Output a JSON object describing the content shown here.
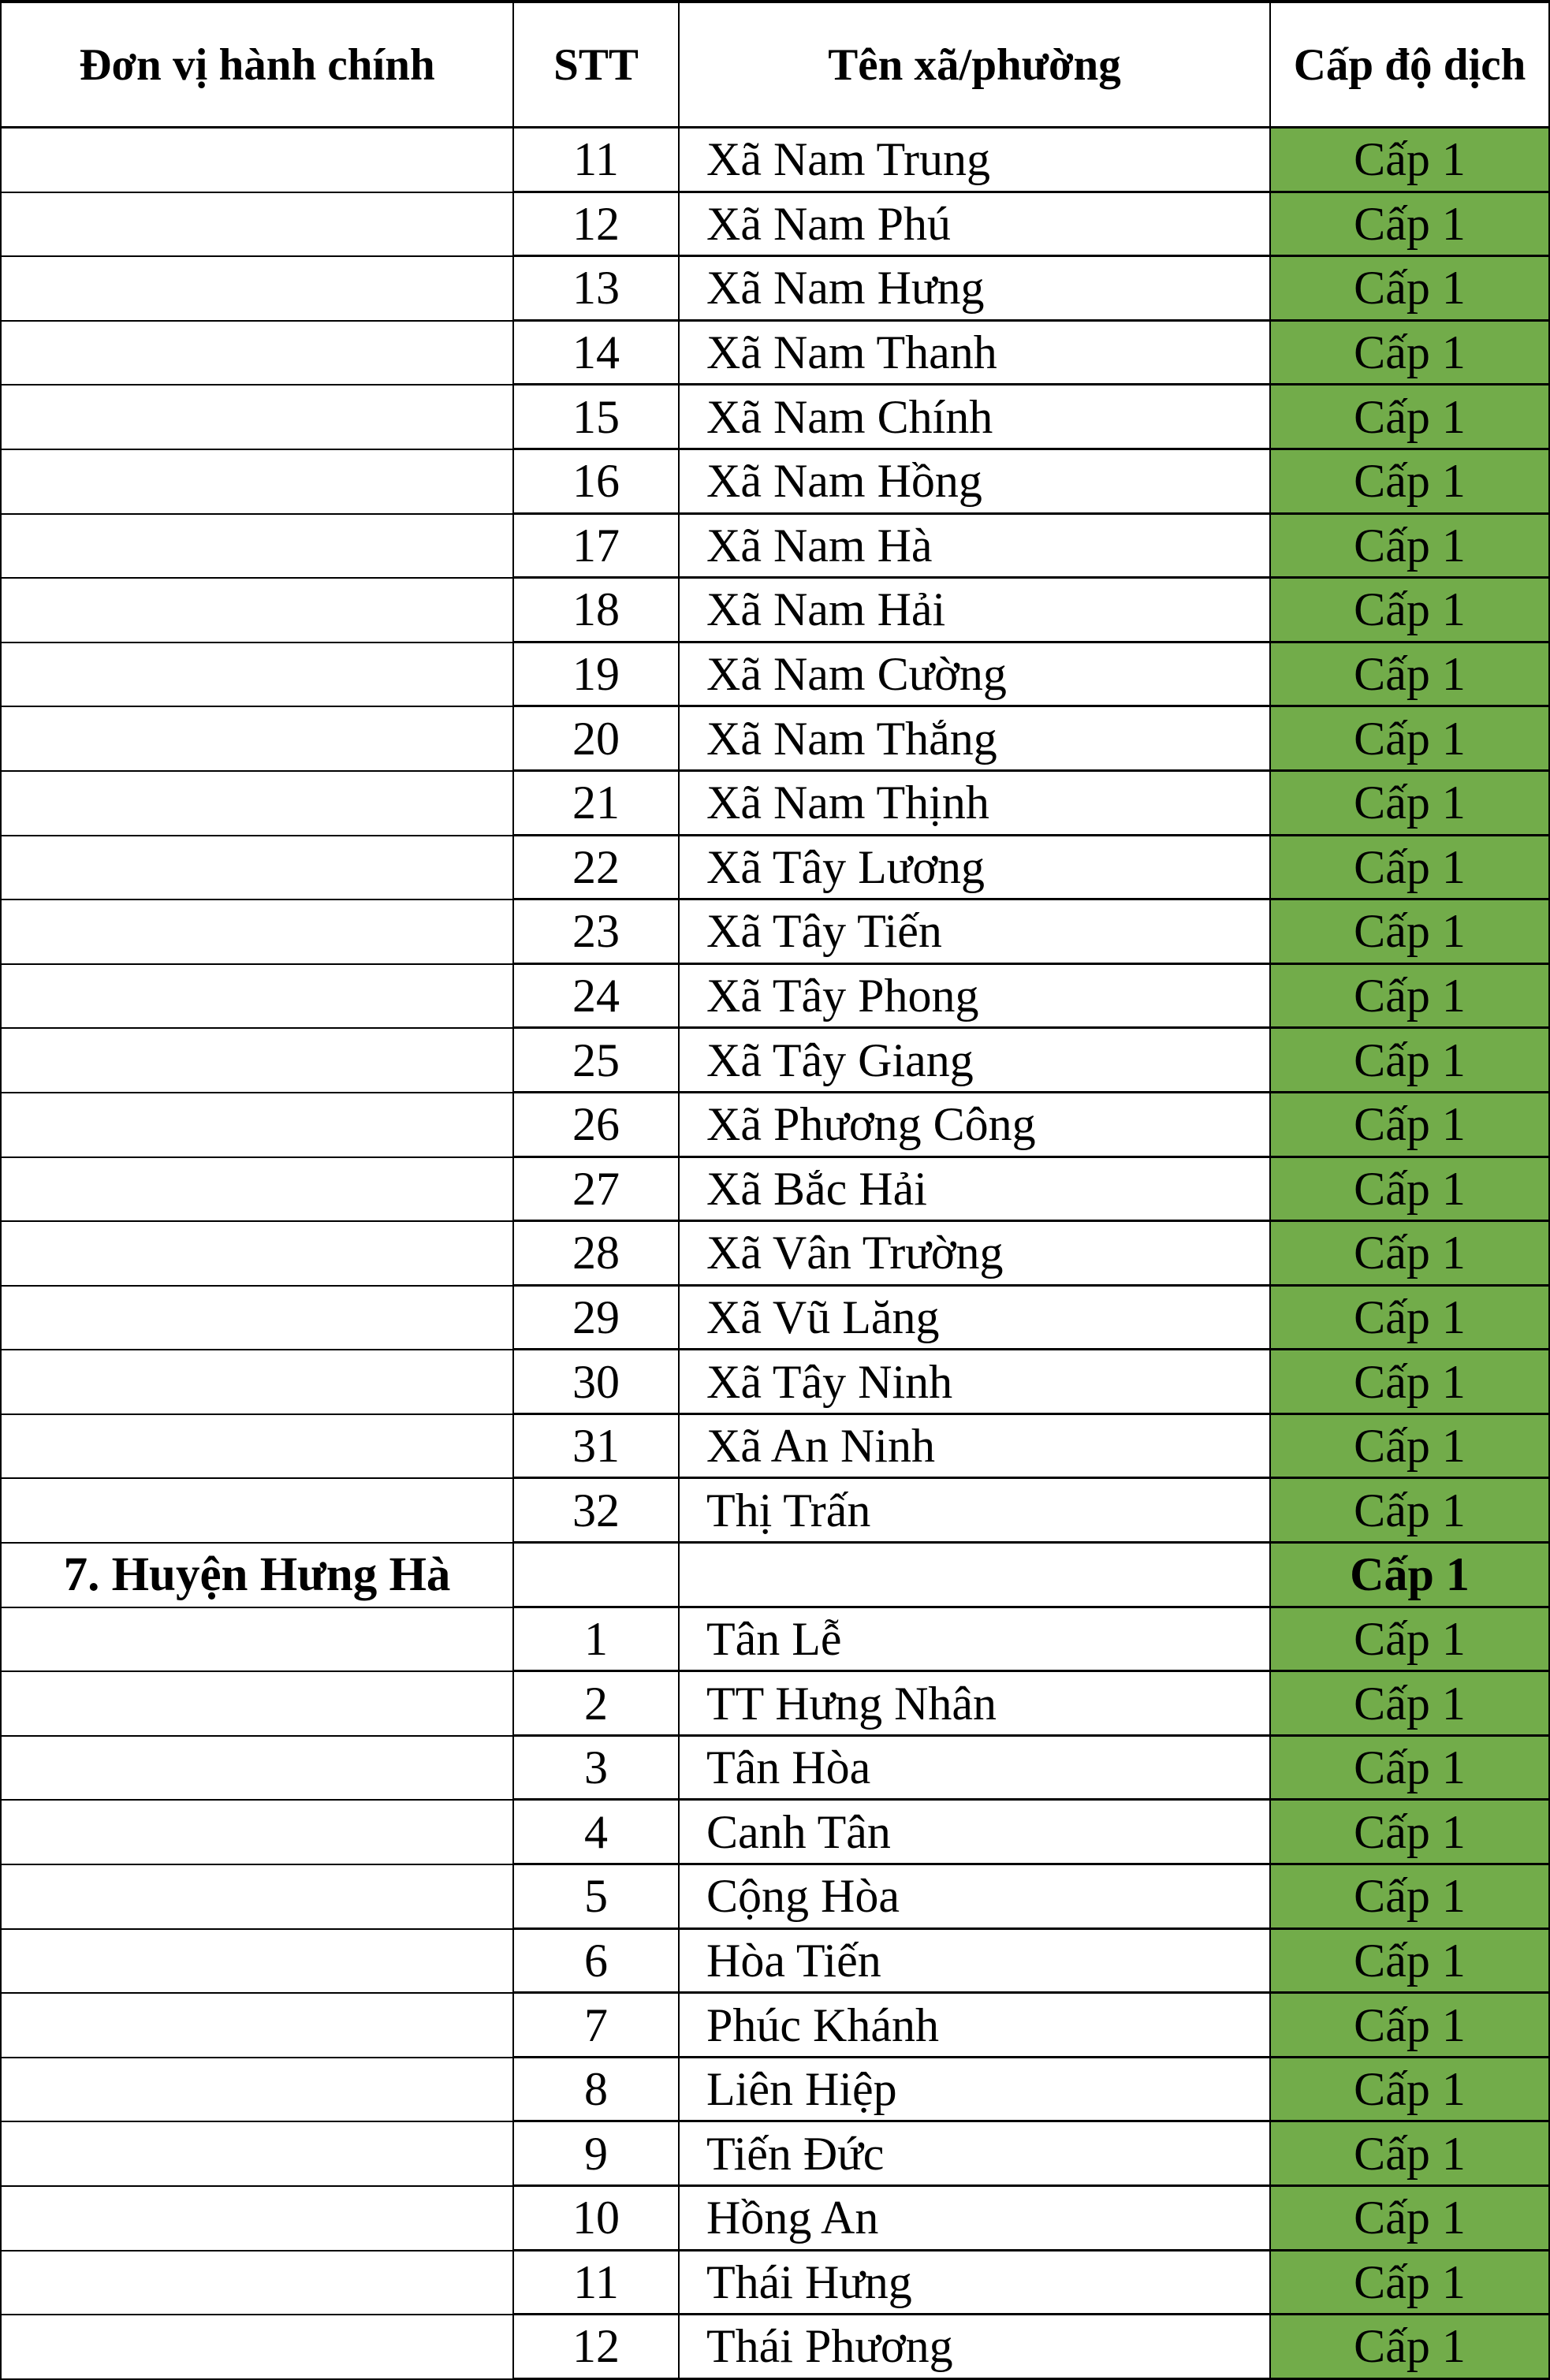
{
  "header": {
    "columns": [
      "Đơn vị hành chính",
      "STT",
      "Tên xã/phường",
      "Cấp độ dịch"
    ]
  },
  "colors": {
    "level1_green": "#72AC4A",
    "border": "#000000",
    "background": "#FFFFFF",
    "text": "#000000"
  },
  "rows": [
    {
      "unit": "",
      "stt": "11",
      "name": "Xã Nam Trung",
      "level": "Cấp 1",
      "is_section_header": false
    },
    {
      "unit": "",
      "stt": "12",
      "name": "Xã Nam Phú",
      "level": "Cấp 1",
      "is_section_header": false
    },
    {
      "unit": "",
      "stt": "13",
      "name": "Xã Nam Hưng",
      "level": "Cấp 1",
      "is_section_header": false
    },
    {
      "unit": "",
      "stt": "14",
      "name": "Xã Nam Thanh",
      "level": "Cấp 1",
      "is_section_header": false
    },
    {
      "unit": "",
      "stt": "15",
      "name": "Xã Nam Chính",
      "level": "Cấp 1",
      "is_section_header": false
    },
    {
      "unit": "",
      "stt": "16",
      "name": "Xã Nam Hồng",
      "level": "Cấp 1",
      "is_section_header": false
    },
    {
      "unit": "",
      "stt": "17",
      "name": "Xã Nam Hà",
      "level": "Cấp 1",
      "is_section_header": false
    },
    {
      "unit": "",
      "stt": "18",
      "name": "Xã Nam Hải",
      "level": "Cấp 1",
      "is_section_header": false
    },
    {
      "unit": "",
      "stt": "19",
      "name": "Xã Nam Cường",
      "level": "Cấp 1",
      "is_section_header": false
    },
    {
      "unit": "",
      "stt": "20",
      "name": "Xã Nam Thắng",
      "level": "Cấp 1",
      "is_section_header": false
    },
    {
      "unit": "",
      "stt": "21",
      "name": "Xã Nam Thịnh",
      "level": "Cấp 1",
      "is_section_header": false
    },
    {
      "unit": "",
      "stt": "22",
      "name": "Xã Tây Lương",
      "level": "Cấp 1",
      "is_section_header": false
    },
    {
      "unit": "",
      "stt": "23",
      "name": "Xã Tây Tiến",
      "level": "Cấp 1",
      "is_section_header": false
    },
    {
      "unit": "",
      "stt": "24",
      "name": "Xã Tây Phong",
      "level": "Cấp 1",
      "is_section_header": false
    },
    {
      "unit": "",
      "stt": "25",
      "name": "Xã Tây Giang",
      "level": "Cấp 1",
      "is_section_header": false
    },
    {
      "unit": "",
      "stt": "26",
      "name": "Xã Phương Công",
      "level": "Cấp 1",
      "is_section_header": false
    },
    {
      "unit": "",
      "stt": "27",
      "name": "Xã Bắc Hải",
      "level": "Cấp 1",
      "is_section_header": false
    },
    {
      "unit": "",
      "stt": "28",
      "name": "Xã Vân Trường",
      "level": "Cấp 1",
      "is_section_header": false
    },
    {
      "unit": "",
      "stt": "29",
      "name": "Xã Vũ Lăng",
      "level": "Cấp 1",
      "is_section_header": false
    },
    {
      "unit": "",
      "stt": "30",
      "name": "Xã Tây Ninh",
      "level": "Cấp 1",
      "is_section_header": false
    },
    {
      "unit": "",
      "stt": "31",
      "name": "Xã An Ninh",
      "level": "Cấp 1",
      "is_section_header": false
    },
    {
      "unit": "",
      "stt": "32",
      "name": "Thị Trấn",
      "level": "Cấp 1",
      "is_section_header": false
    },
    {
      "unit": "7. Huyện Hưng Hà",
      "stt": "",
      "name": "",
      "level": "Cấp 1",
      "is_section_header": true
    },
    {
      "unit": "",
      "stt": "1",
      "name": "Tân Lễ",
      "level": "Cấp 1",
      "is_section_header": false
    },
    {
      "unit": "",
      "stt": "2",
      "name": "TT Hưng Nhân",
      "level": "Cấp 1",
      "is_section_header": false
    },
    {
      "unit": "",
      "stt": "3",
      "name": "Tân Hòa",
      "level": "Cấp 1",
      "is_section_header": false
    },
    {
      "unit": "",
      "stt": "4",
      "name": "Canh Tân",
      "level": "Cấp 1",
      "is_section_header": false
    },
    {
      "unit": "",
      "stt": "5",
      "name": "Cộng Hòa",
      "level": "Cấp 1",
      "is_section_header": false
    },
    {
      "unit": "",
      "stt": "6",
      "name": "Hòa Tiến",
      "level": "Cấp 1",
      "is_section_header": false
    },
    {
      "unit": "",
      "stt": "7",
      "name": "Phúc Khánh",
      "level": "Cấp 1",
      "is_section_header": false
    },
    {
      "unit": "",
      "stt": "8",
      "name": "Liên Hiệp",
      "level": "Cấp 1",
      "is_section_header": false
    },
    {
      "unit": "",
      "stt": "9",
      "name": "Tiến Đức",
      "level": "Cấp 1",
      "is_section_header": false
    },
    {
      "unit": "",
      "stt": "10",
      "name": "Hồng An",
      "level": "Cấp 1",
      "is_section_header": false
    },
    {
      "unit": "",
      "stt": "11",
      "name": "Thái Hưng",
      "level": "Cấp 1",
      "is_section_header": false
    },
    {
      "unit": "",
      "stt": "12",
      "name": "Thái Phương",
      "level": "Cấp 1",
      "is_section_header": false
    }
  ]
}
